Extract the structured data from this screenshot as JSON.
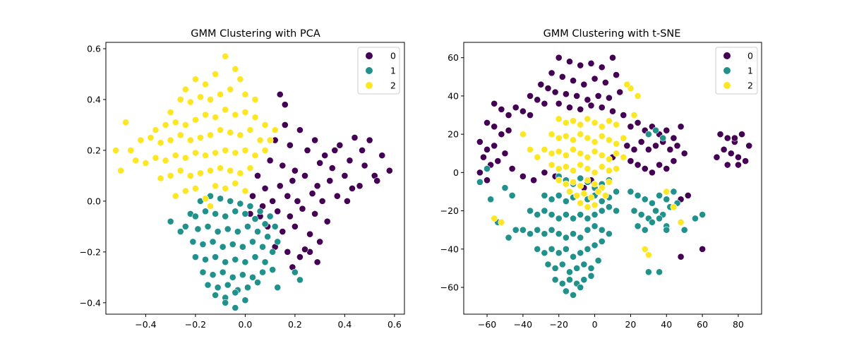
{
  "chart_data": [
    {
      "type": "scatter",
      "title": "GMM Clustering with PCA",
      "xlabel": "",
      "ylabel": "",
      "xlim": [
        -0.56,
        0.64
      ],
      "ylim": [
        -0.445,
        0.625
      ],
      "xticks": [
        -0.4,
        -0.2,
        0.0,
        0.2,
        0.4,
        0.6
      ],
      "xtick_labels": [
        "−0.4",
        "−0.2",
        "0.0",
        "0.2",
        "0.4",
        "0.6"
      ],
      "yticks": [
        -0.4,
        -0.2,
        0.0,
        0.2,
        0.4,
        0.6
      ],
      "ytick_labels": [
        "−0.4",
        "−0.2",
        "0.0",
        "0.2",
        "0.4",
        "0.6"
      ],
      "grid": false,
      "legend": {
        "placement": "top-right",
        "entries": [
          "0",
          "1",
          "2"
        ]
      },
      "series": [
        {
          "name": "0",
          "color": "#440154",
          "x": [
            0.16,
            0.22,
            0.28,
            0.12,
            0.18,
            0.25,
            0.32,
            0.38,
            0.44,
            0.5,
            0.55,
            0.1,
            0.15,
            0.2,
            0.3,
            0.35,
            0.42,
            0.48,
            0.52,
            0.58,
            0.05,
            0.08,
            0.14,
            0.19,
            0.24,
            0.29,
            0.34,
            0.4,
            0.46,
            0.03,
            0.07,
            0.11,
            0.17,
            0.21,
            0.27,
            0.31,
            0.37,
            0.43,
            0.02,
            0.06,
            0.13,
            0.18,
            0.23,
            0.28,
            0.33,
            0.09,
            0.15,
            0.2,
            0.26,
            0.3,
            0.12,
            0.17,
            0.22,
            0.26,
            0.29,
            0.19,
            0.24,
            0.14,
            0.16,
            0.36,
            0.47,
            0.53,
            0.41
          ],
          "y": [
            0.3,
            0.28,
            0.24,
            0.24,
            0.22,
            0.2,
            0.18,
            0.22,
            0.25,
            0.24,
            0.18,
            0.16,
            0.14,
            0.12,
            0.15,
            0.13,
            0.16,
            0.14,
            0.1,
            0.12,
            0.1,
            0.05,
            0.06,
            0.08,
            0.1,
            0.06,
            0.08,
            0.1,
            0.06,
            0.02,
            -0.02,
            0.0,
            0.02,
            0.0,
            0.03,
            0.0,
            0.02,
            0.05,
            -0.05,
            -0.06,
            -0.04,
            -0.06,
            -0.03,
            -0.05,
            -0.08,
            -0.1,
            -0.12,
            -0.1,
            -0.13,
            -0.16,
            -0.18,
            -0.2,
            -0.22,
            -0.2,
            -0.24,
            -0.26,
            -0.19,
            0.42,
            0.38,
            0.2,
            0.2,
            0.08,
            0.0
          ]
        },
        {
          "name": "1",
          "color": "#21918c",
          "x": [
            -0.18,
            -0.14,
            -0.1,
            -0.06,
            -0.02,
            0.02,
            0.06,
            0.1,
            -0.22,
            -0.2,
            -0.16,
            -0.12,
            -0.08,
            -0.04,
            0.0,
            0.04,
            0.08,
            0.12,
            -0.24,
            -0.19,
            -0.15,
            -0.11,
            -0.07,
            -0.03,
            0.01,
            0.05,
            0.09,
            0.13,
            -0.21,
            -0.17,
            -0.13,
            -0.09,
            -0.05,
            -0.01,
            0.03,
            0.07,
            0.11,
            -0.2,
            -0.16,
            -0.12,
            -0.08,
            -0.04,
            0.0,
            0.04,
            0.08,
            -0.17,
            -0.13,
            -0.09,
            -0.05,
            -0.01,
            0.03,
            0.07,
            -0.15,
            -0.11,
            -0.07,
            -0.03,
            0.01,
            0.05,
            -0.12,
            -0.08,
            -0.04,
            0.0,
            -0.08,
            -0.04,
            -0.3,
            -0.26,
            0.2,
            0.22,
            0.11,
            0.13
          ],
          "y": [
            0.0,
            0.02,
            0.01,
            0.0,
            -0.01,
            -0.02,
            -0.04,
            -0.06,
            -0.05,
            -0.06,
            -0.04,
            -0.05,
            -0.06,
            -0.04,
            -0.05,
            -0.07,
            -0.09,
            -0.1,
            -0.1,
            -0.11,
            -0.1,
            -0.12,
            -0.11,
            -0.12,
            -0.1,
            -0.12,
            -0.14,
            -0.16,
            -0.16,
            -0.17,
            -0.16,
            -0.18,
            -0.17,
            -0.18,
            -0.16,
            -0.18,
            -0.2,
            -0.22,
            -0.23,
            -0.22,
            -0.24,
            -0.23,
            -0.24,
            -0.22,
            -0.24,
            -0.28,
            -0.29,
            -0.28,
            -0.3,
            -0.29,
            -0.3,
            -0.28,
            -0.33,
            -0.34,
            -0.33,
            -0.35,
            -0.34,
            -0.32,
            -0.37,
            -0.38,
            -0.36,
            -0.39,
            -0.4,
            -0.42,
            -0.08,
            -0.12,
            -0.28,
            -0.31,
            -0.27,
            -0.34
          ]
        },
        {
          "name": "2",
          "color": "#fde725",
          "x": [
            -0.08,
            -0.04,
            -0.02,
            -0.12,
            -0.16,
            -0.2,
            -0.24,
            -0.06,
            0.0,
            0.04,
            -0.1,
            -0.14,
            -0.18,
            -0.22,
            -0.26,
            -0.3,
            -0.08,
            -0.04,
            0.0,
            0.04,
            0.08,
            -0.12,
            -0.16,
            -0.2,
            -0.24,
            -0.28,
            -0.32,
            -0.36,
            -0.1,
            -0.06,
            -0.02,
            0.02,
            0.06,
            -0.14,
            -0.18,
            -0.22,
            -0.26,
            -0.3,
            -0.34,
            -0.38,
            -0.42,
            -0.08,
            -0.04,
            0.0,
            0.04,
            0.08,
            -0.12,
            -0.16,
            -0.2,
            -0.24,
            -0.28,
            -0.32,
            -0.36,
            -0.4,
            -0.1,
            -0.06,
            -0.02,
            0.02,
            -0.14,
            -0.18,
            -0.22,
            -0.26,
            -0.3,
            -0.34,
            -0.12,
            -0.08,
            -0.04,
            0.0,
            -0.2,
            -0.24,
            -0.28,
            -0.16,
            -0.52,
            -0.48,
            -0.46,
            -0.44,
            -0.5,
            0.12,
            0.1,
            -0.14
          ],
          "y": [
            0.57,
            0.52,
            0.48,
            0.5,
            0.46,
            0.48,
            0.44,
            0.44,
            0.42,
            0.4,
            0.42,
            0.4,
            0.41,
            0.39,
            0.4,
            0.35,
            0.36,
            0.34,
            0.35,
            0.33,
            0.3,
            0.33,
            0.34,
            0.32,
            0.3,
            0.31,
            0.3,
            0.28,
            0.28,
            0.27,
            0.26,
            0.28,
            0.24,
            0.26,
            0.25,
            0.24,
            0.26,
            0.24,
            0.23,
            0.25,
            0.24,
            0.2,
            0.19,
            0.2,
            0.18,
            0.2,
            0.19,
            0.18,
            0.19,
            0.17,
            0.18,
            0.16,
            0.17,
            0.15,
            0.13,
            0.12,
            0.11,
            0.13,
            0.12,
            0.11,
            0.1,
            0.12,
            0.1,
            0.09,
            0.06,
            0.05,
            0.07,
            0.04,
            0.05,
            0.04,
            0.02,
            0.01,
            0.2,
            0.31,
            0.2,
            0.16,
            0.12,
            0.28,
            0.24,
            -0.02
          ]
        }
      ]
    },
    {
      "type": "scatter",
      "title": "GMM Clustering with t-SNE",
      "xlabel": "",
      "ylabel": "",
      "xlim": [
        -73,
        93
      ],
      "ylim": [
        -74,
        68
      ],
      "xticks": [
        -60,
        -40,
        -20,
        0,
        20,
        40,
        60,
        80
      ],
      "xtick_labels": [
        "−60",
        "−40",
        "−20",
        "0",
        "20",
        "40",
        "60",
        "80"
      ],
      "yticks": [
        -60,
        -40,
        -20,
        0,
        20,
        40,
        60
      ],
      "ytick_labels": [
        "−60",
        "−40",
        "−20",
        "0",
        "20",
        "40",
        "60"
      ],
      "grid": false,
      "legend": {
        "placement": "top-right",
        "entries": [
          "0",
          "1",
          "2"
        ]
      },
      "series": [
        {
          "name": "0",
          "color": "#440154",
          "x": [
            -20,
            -14,
            -8,
            -2,
            4,
            10,
            -24,
            -18,
            -12,
            -6,
            0,
            6,
            12,
            -30,
            -26,
            -22,
            -16,
            -10,
            -4,
            2,
            8,
            14,
            -36,
            -32,
            -28,
            -20,
            -14,
            -8,
            -2,
            4,
            10,
            16,
            -44,
            -40,
            -36,
            -56,
            -52,
            -48,
            -60,
            -56,
            -52,
            -48,
            -64,
            -60,
            -56,
            -62,
            -58,
            -54,
            -50,
            -64,
            -60,
            -46,
            20,
            24,
            28,
            32,
            36,
            40,
            44,
            48,
            18,
            22,
            26,
            30,
            34,
            38,
            42,
            46,
            50,
            20,
            24,
            28,
            32,
            36,
            40,
            44,
            -40,
            -34,
            -28,
            -22,
            44,
            48,
            52,
            70,
            74,
            78,
            82,
            86,
            72,
            76,
            80,
            84,
            68,
            74,
            80,
            78,
            60,
            48,
            -2,
            -6,
            10
          ],
          "y": [
            60,
            58,
            56,
            57,
            55,
            60,
            52,
            50,
            48,
            46,
            49,
            47,
            51,
            46,
            44,
            42,
            41,
            40,
            38,
            40,
            39,
            42,
            40,
            38,
            36,
            36,
            34,
            33,
            35,
            34,
            32,
            30,
            34,
            32,
            30,
            36,
            33,
            30,
            26,
            24,
            20,
            22,
            16,
            12,
            14,
            8,
            4,
            6,
            10,
            0,
            -4,
            2,
            24,
            26,
            22,
            24,
            20,
            22,
            18,
            24,
            14,
            12,
            16,
            12,
            14,
            16,
            12,
            14,
            10,
            6,
            4,
            2,
            0,
            4,
            2,
            6,
            -2,
            -4,
            0,
            -2,
            -10,
            -14,
            -12,
            20,
            18,
            16,
            20,
            14,
            12,
            10,
            8,
            6,
            8,
            4,
            4,
            18,
            -40,
            -44,
            -4,
            -8,
            8
          ]
        },
        {
          "name": "1",
          "color": "#21918c",
          "x": [
            -20,
            -16,
            -12,
            -8,
            -4,
            0,
            4,
            8,
            -28,
            -24,
            -20,
            -16,
            -12,
            -8,
            -4,
            0,
            4,
            8,
            12,
            -36,
            -32,
            -28,
            -24,
            -20,
            -16,
            -12,
            -8,
            -4,
            0,
            4,
            8,
            12,
            -40,
            -36,
            -32,
            -28,
            -24,
            -20,
            -16,
            -12,
            -8,
            -4,
            0,
            4,
            8,
            -32,
            -28,
            -24,
            -20,
            -16,
            -12,
            -8,
            -4,
            0,
            4,
            -26,
            -22,
            -18,
            -14,
            -10,
            -6,
            -2,
            2,
            -22,
            -18,
            -14,
            -10,
            -6,
            -2,
            -16,
            -12,
            -8,
            20,
            24,
            28,
            32,
            36,
            40,
            44,
            22,
            26,
            30,
            34,
            38,
            42,
            46,
            24,
            28,
            32,
            36,
            40,
            30,
            34,
            38,
            -44,
            -48,
            -54,
            -58,
            -64,
            -60,
            -50,
            -46,
            30,
            36,
            40,
            50,
            56,
            60
          ],
          "y": [
            -2,
            -4,
            -6,
            -3,
            -5,
            -8,
            -6,
            -4,
            -12,
            -14,
            -12,
            -15,
            -13,
            -16,
            -14,
            -12,
            -15,
            -13,
            -10,
            -20,
            -22,
            -20,
            -22,
            -24,
            -22,
            -24,
            -22,
            -24,
            -22,
            -20,
            -18,
            -20,
            -30,
            -32,
            -30,
            -32,
            -30,
            -32,
            -34,
            -32,
            -34,
            -30,
            -28,
            -30,
            -32,
            -40,
            -42,
            -40,
            -42,
            -40,
            -44,
            -42,
            -40,
            -38,
            -36,
            -48,
            -50,
            -48,
            -52,
            -50,
            -48,
            -50,
            -46,
            -56,
            -58,
            -56,
            -58,
            -56,
            -54,
            -62,
            -64,
            -60,
            -10,
            -12,
            -14,
            -16,
            -12,
            -14,
            -10,
            -20,
            -22,
            -24,
            -20,
            -22,
            -18,
            -16,
            -28,
            -30,
            -26,
            -24,
            -28,
            20,
            22,
            18,
            -30,
            -34,
            -26,
            -14,
            -5,
            2,
            -8,
            -12,
            -52,
            -52,
            -30,
            -30,
            -24,
            -22
          ]
        },
        {
          "name": "2",
          "color": "#fde725",
          "x": [
            -20,
            -16,
            -12,
            -8,
            -4,
            0,
            4,
            8,
            12,
            -24,
            -20,
            -16,
            -12,
            -8,
            -4,
            0,
            4,
            8,
            12,
            16,
            -28,
            -24,
            -20,
            -16,
            -12,
            -8,
            -4,
            0,
            4,
            8,
            12,
            16,
            -24,
            -20,
            -16,
            -12,
            -8,
            -4,
            0,
            4,
            8,
            12,
            -20,
            -16,
            -12,
            -8,
            -4,
            0,
            4,
            8,
            -14,
            -10,
            -6,
            -2,
            2,
            6,
            -8,
            -4,
            0,
            20,
            24,
            -36,
            -32,
            -40,
            -56,
            -52,
            28,
            30,
            40,
            44,
            48,
            18,
            22
          ],
          "y": [
            28,
            26,
            27,
            25,
            28,
            26,
            24,
            27,
            25,
            20,
            18,
            19,
            17,
            20,
            18,
            16,
            19,
            17,
            15,
            18,
            12,
            10,
            11,
            9,
            12,
            10,
            8,
            11,
            9,
            7,
            10,
            8,
            4,
            2,
            3,
            1,
            4,
            2,
            0,
            3,
            1,
            2,
            -4,
            -6,
            -5,
            -7,
            -4,
            -6,
            -8,
            -5,
            -10,
            -12,
            -11,
            -13,
            -10,
            -12,
            -16,
            -18,
            -17,
            44,
            40,
            12,
            8,
            20,
            -24,
            -26,
            -40,
            -43,
            -10,
            -18,
            -26,
            46,
            30
          ]
        }
      ]
    }
  ]
}
